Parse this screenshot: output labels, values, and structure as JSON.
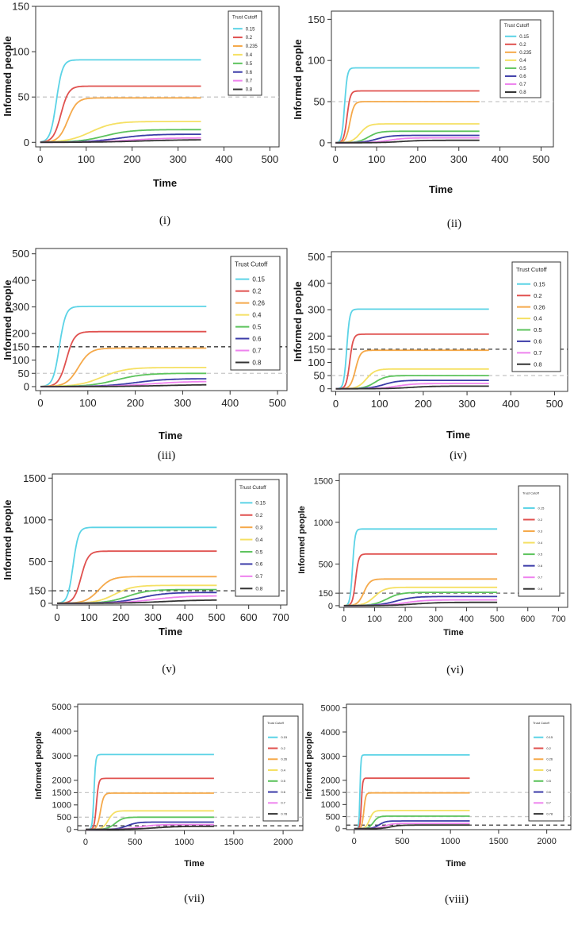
{
  "chart_data": [
    {
      "type": "line",
      "caption": "(i)",
      "xlabel": "Time",
      "ylabel": "Informed people",
      "xlim": [
        -10,
        520
      ],
      "ylim": [
        -5,
        150
      ],
      "xticks": [
        0,
        100,
        200,
        300,
        400,
        500
      ],
      "yticks": [
        0,
        50,
        100,
        150
      ],
      "legend_title": "Trust Cutoff",
      "legend_position": "top-right",
      "ref_lines": [
        {
          "y": 50,
          "color": "#c8c8c8"
        }
      ],
      "series": [
        {
          "name": "0.15",
          "color": "#5bd3e6",
          "final": 91,
          "t_half": 35,
          "rate": 0.15,
          "t_end": 350
        },
        {
          "name": "0.2",
          "color": "#e0514f",
          "final": 62,
          "t_half": 45,
          "rate": 0.12,
          "t_end": 350
        },
        {
          "name": "0.235",
          "color": "#f5a94a",
          "final": 49,
          "t_half": 60,
          "rate": 0.1,
          "t_end": 350
        },
        {
          "name": "0.4",
          "color": "#f5e063",
          "final": 23,
          "t_half": 110,
          "rate": 0.04,
          "t_end": 350
        },
        {
          "name": "0.5",
          "color": "#5cc35c",
          "final": 14,
          "t_half": 140,
          "rate": 0.035,
          "t_end": 350
        },
        {
          "name": "0.6",
          "color": "#3b3ba8",
          "final": 9,
          "t_half": 170,
          "rate": 0.03,
          "t_end": 350
        },
        {
          "name": "0.7",
          "color": "#ee82ee",
          "final": 5,
          "t_half": 200,
          "rate": 0.025,
          "t_end": 350
        },
        {
          "name": "0.8",
          "color": "#333333",
          "final": 3,
          "t_half": 220,
          "rate": 0.02,
          "t_end": 350
        }
      ]
    },
    {
      "type": "line",
      "caption": "(ii)",
      "xlabel": "Time",
      "ylabel": "Informed people",
      "xlim": [
        -10,
        530
      ],
      "ylim": [
        -5,
        160
      ],
      "xticks": [
        0,
        100,
        200,
        300,
        400,
        500
      ],
      "yticks": [
        0,
        50,
        100,
        150
      ],
      "legend_title": "Trust Cutoff",
      "legend_position": "top-right",
      "ref_lines": [
        {
          "y": 50,
          "color": "#c8c8c8"
        }
      ],
      "series": [
        {
          "name": "0.15",
          "color": "#5bd3e6",
          "final": 91,
          "t_half": 22,
          "rate": 0.3,
          "t_end": 350
        },
        {
          "name": "0.2",
          "color": "#e0514f",
          "final": 63,
          "t_half": 28,
          "rate": 0.25,
          "t_end": 350
        },
        {
          "name": "0.235",
          "color": "#f5a94a",
          "final": 50,
          "t_half": 35,
          "rate": 0.2,
          "t_end": 350
        },
        {
          "name": "0.4",
          "color": "#f5e063",
          "final": 23,
          "t_half": 60,
          "rate": 0.1,
          "t_end": 350
        },
        {
          "name": "0.5",
          "color": "#5cc35c",
          "final": 14,
          "t_half": 80,
          "rate": 0.08,
          "t_end": 350
        },
        {
          "name": "0.6",
          "color": "#3b3ba8",
          "final": 9,
          "t_half": 100,
          "rate": 0.06,
          "t_end": 350
        },
        {
          "name": "0.7",
          "color": "#ee82ee",
          "final": 6,
          "t_half": 130,
          "rate": 0.05,
          "t_end": 350
        },
        {
          "name": "0.8",
          "color": "#333333",
          "final": 3,
          "t_half": 160,
          "rate": 0.04,
          "t_end": 350
        }
      ]
    },
    {
      "type": "line",
      "caption": "(iii)",
      "xlabel": "Time",
      "ylabel": "Informed people",
      "xlim": [
        -10,
        520
      ],
      "ylim": [
        -15,
        520
      ],
      "xticks": [
        0,
        100,
        200,
        300,
        400,
        500
      ],
      "yticks": [
        0,
        50,
        100,
        150,
        200,
        300,
        400,
        500
      ],
      "legend_title": "Trust Cutoff",
      "legend_position": "top-right",
      "ref_lines": [
        {
          "y": 150,
          "color": "#333333"
        },
        {
          "y": 50,
          "color": "#c8c8c8"
        }
      ],
      "series": [
        {
          "name": "0.15",
          "color": "#5bd3e6",
          "final": 302,
          "t_half": 40,
          "rate": 0.15,
          "t_end": 350
        },
        {
          "name": "0.2",
          "color": "#e0514f",
          "final": 207,
          "t_half": 55,
          "rate": 0.12,
          "t_end": 350
        },
        {
          "name": "0.26",
          "color": "#f5a94a",
          "final": 145,
          "t_half": 80,
          "rate": 0.08,
          "t_end": 350
        },
        {
          "name": "0.4",
          "color": "#f5e063",
          "final": 72,
          "t_half": 130,
          "rate": 0.04,
          "t_end": 350
        },
        {
          "name": "0.5",
          "color": "#5cc35c",
          "final": 50,
          "t_half": 160,
          "rate": 0.035,
          "t_end": 350
        },
        {
          "name": "0.6",
          "color": "#3b3ba8",
          "final": 30,
          "t_half": 200,
          "rate": 0.03,
          "t_end": 350
        },
        {
          "name": "0.7",
          "color": "#ee82ee",
          "final": 20,
          "t_half": 230,
          "rate": 0.025,
          "t_end": 350
        },
        {
          "name": "0.8",
          "color": "#333333",
          "final": 8,
          "t_half": 260,
          "rate": 0.02,
          "t_end": 350
        }
      ]
    },
    {
      "type": "line",
      "caption": "(iv)",
      "xlabel": "Time",
      "ylabel": "Informed people",
      "xlim": [
        -10,
        530
      ],
      "ylim": [
        -10,
        520
      ],
      "xticks": [
        0,
        100,
        200,
        300,
        400,
        500
      ],
      "yticks": [
        0,
        50,
        100,
        150,
        200,
        300,
        400,
        500
      ],
      "legend_title": "Trust Cutoff",
      "legend_position": "top-right",
      "ref_lines": [
        {
          "y": 150,
          "color": "#333333"
        },
        {
          "y": 50,
          "color": "#c8c8c8"
        }
      ],
      "series": [
        {
          "name": "0.15",
          "color": "#5bd3e6",
          "final": 302,
          "t_half": 25,
          "rate": 0.3,
          "t_end": 350
        },
        {
          "name": "0.2",
          "color": "#e0514f",
          "final": 207,
          "t_half": 32,
          "rate": 0.25,
          "t_end": 350
        },
        {
          "name": "0.26",
          "color": "#f5a94a",
          "final": 146,
          "t_half": 45,
          "rate": 0.18,
          "t_end": 350
        },
        {
          "name": "0.4",
          "color": "#f5e063",
          "final": 75,
          "t_half": 70,
          "rate": 0.1,
          "t_end": 350
        },
        {
          "name": "0.5",
          "color": "#5cc35c",
          "final": 50,
          "t_half": 90,
          "rate": 0.08,
          "t_end": 350
        },
        {
          "name": "0.6",
          "color": "#3b3ba8",
          "final": 32,
          "t_half": 110,
          "rate": 0.06,
          "t_end": 350
        },
        {
          "name": "0.7",
          "color": "#ee82ee",
          "final": 20,
          "t_half": 140,
          "rate": 0.05,
          "t_end": 350
        },
        {
          "name": "0.8",
          "color": "#333333",
          "final": 10,
          "t_half": 170,
          "rate": 0.04,
          "t_end": 350
        }
      ]
    },
    {
      "type": "line",
      "caption": "(v)",
      "xlabel": "Time",
      "ylabel": "Informed people",
      "xlim": [
        -15,
        720
      ],
      "ylim": [
        -20,
        1550
      ],
      "xticks": [
        0,
        100,
        200,
        300,
        400,
        500,
        600,
        700
      ],
      "yticks": [
        0,
        150,
        500,
        1000,
        1500
      ],
      "legend_title": "Trust Cutoff",
      "legend_position": "top-right",
      "ref_lines": [
        {
          "y": 150,
          "color": "#333333"
        }
      ],
      "series": [
        {
          "name": "0.15",
          "color": "#5bd3e6",
          "final": 910,
          "t_half": 50,
          "rate": 0.12,
          "t_end": 500
        },
        {
          "name": "0.2",
          "color": "#e0514f",
          "final": 625,
          "t_half": 75,
          "rate": 0.09,
          "t_end": 500
        },
        {
          "name": "0.3",
          "color": "#f5a94a",
          "final": 320,
          "t_half": 130,
          "rate": 0.05,
          "t_end": 500
        },
        {
          "name": "0.4",
          "color": "#f5e063",
          "final": 215,
          "t_half": 180,
          "rate": 0.035,
          "t_end": 500
        },
        {
          "name": "0.5",
          "color": "#5cc35c",
          "final": 165,
          "t_half": 220,
          "rate": 0.03,
          "t_end": 500
        },
        {
          "name": "0.6",
          "color": "#3b3ba8",
          "final": 130,
          "t_half": 260,
          "rate": 0.025,
          "t_end": 500
        },
        {
          "name": "0.7",
          "color": "#ee82ee",
          "final": 90,
          "t_half": 300,
          "rate": 0.02,
          "t_end": 500
        },
        {
          "name": "0.8",
          "color": "#333333",
          "final": 40,
          "t_half": 330,
          "rate": 0.018,
          "t_end": 500
        }
      ]
    },
    {
      "type": "line",
      "caption": "(vi)",
      "xlabel": "Time",
      "ylabel": "Informed people",
      "xlim": [
        -15,
        730
      ],
      "ylim": [
        -20,
        1580
      ],
      "xticks": [
        0,
        100,
        200,
        300,
        400,
        500,
        600,
        700
      ],
      "yticks": [
        0,
        150,
        500,
        1000,
        1500
      ],
      "legend_title": "Trust Cutoff",
      "legend_position": "top-right",
      "ref_lines": [
        {
          "y": 150,
          "color": "#666666"
        }
      ],
      "series": [
        {
          "name": "0.15",
          "color": "#5bd3e6",
          "final": 920,
          "t_half": 28,
          "rate": 0.25,
          "t_end": 500
        },
        {
          "name": "0.2",
          "color": "#e0514f",
          "final": 620,
          "t_half": 38,
          "rate": 0.2,
          "t_end": 500
        },
        {
          "name": "0.3",
          "color": "#f5a94a",
          "final": 320,
          "t_half": 65,
          "rate": 0.1,
          "t_end": 500
        },
        {
          "name": "0.4",
          "color": "#f5e063",
          "final": 220,
          "t_half": 100,
          "rate": 0.06,
          "t_end": 500
        },
        {
          "name": "0.5",
          "color": "#5cc35c",
          "final": 160,
          "t_half": 140,
          "rate": 0.045,
          "t_end": 500
        },
        {
          "name": "0.6",
          "color": "#3b3ba8",
          "final": 110,
          "t_half": 170,
          "rate": 0.035,
          "t_end": 500
        },
        {
          "name": "0.7",
          "color": "#ee82ee",
          "final": 70,
          "t_half": 200,
          "rate": 0.03,
          "t_end": 500
        },
        {
          "name": "0.8",
          "color": "#333333",
          "final": 40,
          "t_half": 230,
          "rate": 0.025,
          "t_end": 500
        }
      ]
    },
    {
      "type": "line",
      "caption": "(vii)",
      "xlabel": "Time",
      "ylabel": "Informed people",
      "xlim": [
        -80,
        2200
      ],
      "ylim": [
        -40,
        5100
      ],
      "xticks": [
        0,
        500,
        1000,
        1500,
        2000
      ],
      "yticks": [
        0,
        500,
        1000,
        1500,
        2000,
        3000,
        4000,
        5000
      ],
      "legend_title": "Trust Cutoff",
      "legend_position": "top-right",
      "ref_lines": [
        {
          "y": 1500,
          "color": "#c8c8c8"
        },
        {
          "y": 500,
          "color": "#c8c8c8"
        },
        {
          "y": 150,
          "color": "#333333"
        }
      ],
      "series": [
        {
          "name": "0.15",
          "color": "#5bd3e6",
          "final": 3050,
          "t_half": 85,
          "rate": 0.12,
          "t_end": 1300
        },
        {
          "name": "0.2",
          "color": "#e0514f",
          "final": 2080,
          "t_half": 110,
          "rate": 0.09,
          "t_end": 1300
        },
        {
          "name": "0.26",
          "color": "#f5a94a",
          "final": 1480,
          "t_half": 150,
          "rate": 0.06,
          "t_end": 1300
        },
        {
          "name": "0.4",
          "color": "#f5e063",
          "final": 760,
          "t_half": 230,
          "rate": 0.035,
          "t_end": 1300
        },
        {
          "name": "0.5",
          "color": "#5cc35c",
          "final": 500,
          "t_half": 300,
          "rate": 0.025,
          "t_end": 1300
        },
        {
          "name": "0.6",
          "color": "#3b3ba8",
          "final": 300,
          "t_half": 420,
          "rate": 0.02,
          "t_end": 1300
        },
        {
          "name": "0.7",
          "color": "#ee82ee",
          "final": 200,
          "t_half": 550,
          "rate": 0.012,
          "t_end": 1300
        },
        {
          "name": "0.78",
          "color": "#333333",
          "final": 130,
          "t_half": 700,
          "rate": 0.008,
          "t_end": 1300
        }
      ]
    },
    {
      "type": "line",
      "caption": "(viii)",
      "xlabel": "Time",
      "ylabel": "Informed people",
      "xlim": [
        -80,
        2250
      ],
      "ylim": [
        -40,
        5150
      ],
      "xticks": [
        0,
        500,
        1000,
        1500,
        2000
      ],
      "yticks": [
        0,
        500,
        1000,
        1500,
        2000,
        3000,
        4000,
        5000
      ],
      "legend_title": "Trust Cutoff",
      "legend_position": "top-right",
      "ref_lines": [
        {
          "y": 1500,
          "color": "#c8c8c8"
        },
        {
          "y": 500,
          "color": "#c8c8c8"
        },
        {
          "y": 150,
          "color": "#333333"
        }
      ],
      "series": [
        {
          "name": "0.15",
          "color": "#5bd3e6",
          "final": 3050,
          "t_half": 60,
          "rate": 0.2,
          "t_end": 1200
        },
        {
          "name": "0.2",
          "color": "#e0514f",
          "final": 2090,
          "t_half": 75,
          "rate": 0.15,
          "t_end": 1200
        },
        {
          "name": "0.26",
          "color": "#f5a94a",
          "final": 1480,
          "t_half": 100,
          "rate": 0.1,
          "t_end": 1200
        },
        {
          "name": "0.4",
          "color": "#f5e063",
          "final": 750,
          "t_half": 160,
          "rate": 0.05,
          "t_end": 1200
        },
        {
          "name": "0.5",
          "color": "#5cc35c",
          "final": 520,
          "t_half": 200,
          "rate": 0.04,
          "t_end": 1200
        },
        {
          "name": "0.6",
          "color": "#3b3ba8",
          "final": 320,
          "t_half": 260,
          "rate": 0.03,
          "t_end": 1200
        },
        {
          "name": "0.7",
          "color": "#ee82ee",
          "final": 220,
          "t_half": 320,
          "rate": 0.025,
          "t_end": 1200
        },
        {
          "name": "0.78",
          "color": "#333333",
          "final": 150,
          "t_half": 380,
          "rate": 0.02,
          "t_end": 1200
        }
      ]
    }
  ]
}
